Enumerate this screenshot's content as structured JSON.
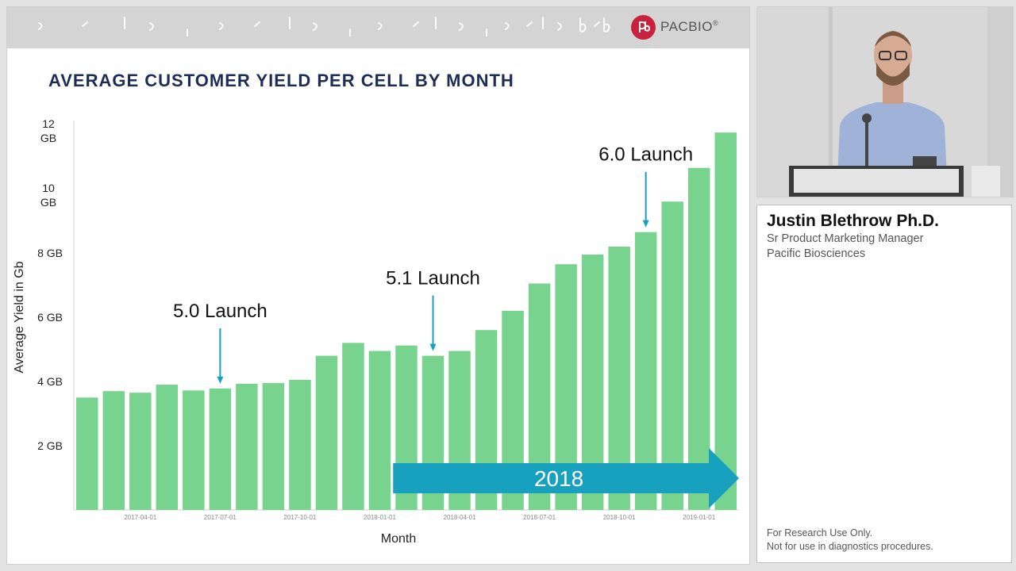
{
  "brand": {
    "name": "PACBIO",
    "trademark": "®",
    "logo_monogram": "pb",
    "brand_color": "#c8223e"
  },
  "speaker": {
    "name": "Justin Blethrow Ph.D.",
    "role": "Sr Product Marketing Manager",
    "organization": "Pacific Biosciences"
  },
  "disclaimer": {
    "line1": "For Research Use Only.",
    "line2": "Not for use in diagnostics procedures."
  },
  "colors": {
    "bar": "#77d38e",
    "arrow": "#18a0bf",
    "launch_text": "#111111",
    "title": "#1d2d56"
  },
  "chart_data": {
    "type": "bar",
    "title": "AVERAGE CUSTOMER YIELD PER CELL BY MONTH",
    "xlabel": "Month",
    "ylabel": "Average Yield in Gb",
    "ylim": [
      0,
      12
    ],
    "y_ticks": [
      {
        "value": 2,
        "label": "2 GB"
      },
      {
        "value": 4,
        "label": "4 GB"
      },
      {
        "value": 6,
        "label": "6 GB"
      },
      {
        "value": 8,
        "label": "8 GB"
      },
      {
        "value": 10,
        "label": "10 GB"
      },
      {
        "value": 12,
        "label": "12 GB"
      }
    ],
    "x": [
      "2017-02",
      "2017-03",
      "2017-04",
      "2017-05",
      "2017-06",
      "2017-07",
      "2017-08",
      "2017-09",
      "2017-10",
      "2017-11",
      "2017-12",
      "2018-01",
      "2018-02",
      "2018-03",
      "2018-04",
      "2018-05",
      "2018-06",
      "2018-07",
      "2018-08",
      "2018-09",
      "2018-10",
      "2018-11",
      "2018-12",
      "2019-01",
      "2019-02"
    ],
    "values": [
      3.5,
      3.7,
      3.65,
      3.9,
      3.72,
      3.78,
      3.93,
      3.95,
      4.05,
      4.8,
      5.2,
      4.95,
      5.12,
      4.8,
      4.95,
      5.6,
      6.2,
      7.05,
      7.65,
      7.95,
      8.2,
      8.65,
      9.6,
      10.65,
      11.75
    ],
    "x_tick_labels": [
      {
        "index": 2,
        "label": "2017-04-01"
      },
      {
        "index": 5,
        "label": "2017-07-01"
      },
      {
        "index": 8,
        "label": "2017-10-01"
      },
      {
        "index": 11,
        "label": "2018-01-01"
      },
      {
        "index": 14,
        "label": "2018-04-01"
      },
      {
        "index": 17,
        "label": "2018-07-01"
      },
      {
        "index": 20,
        "label": "2018-10-01"
      },
      {
        "index": 23,
        "label": "2019-01-01"
      }
    ],
    "annotations": [
      {
        "label": "5.0 Launch",
        "bar_index": 5
      },
      {
        "label": "5.1 Launch",
        "bar_index": 13
      },
      {
        "label": "6.0 Launch",
        "bar_index": 21
      }
    ],
    "period_arrow": {
      "label": "2018",
      "start_index": 12,
      "end_index": 24
    }
  }
}
